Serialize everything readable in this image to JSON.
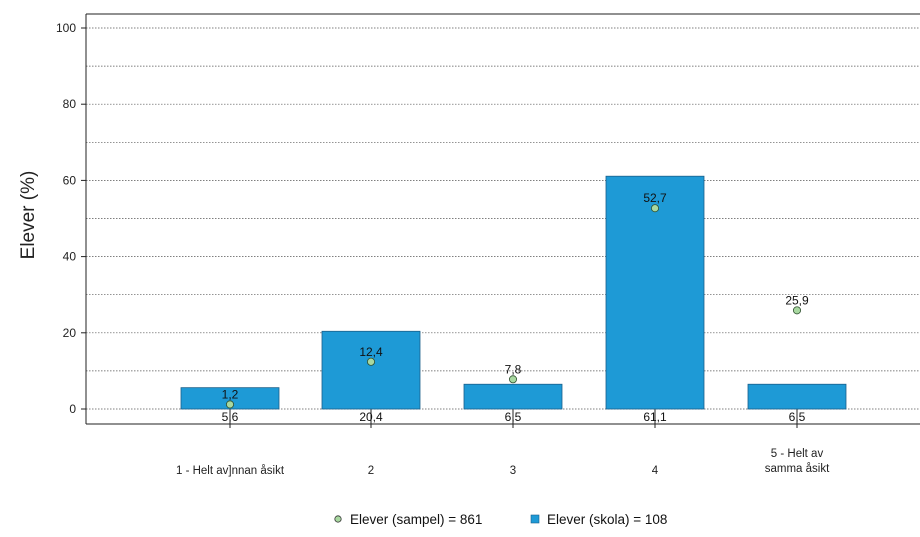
{
  "chart_data": {
    "type": "bar",
    "title": "",
    "xlabel": "",
    "ylabel": "Elever (%)",
    "ylim": [
      0,
      100
    ],
    "yticks": [
      0,
      20,
      40,
      60,
      80,
      100
    ],
    "grid": true,
    "legend_position": "bottom",
    "categories": [
      [
        "1 - Helt av]nnan åsikt"
      ],
      [
        "2"
      ],
      [
        "3"
      ],
      [
        "4"
      ],
      [
        "5 - Helt av",
        "samma åsikt"
      ]
    ],
    "series": [
      {
        "name": "Elever (skola) = 108",
        "kind": "bar",
        "color": "#1e9ad6",
        "values": [
          5.6,
          20.4,
          6.5,
          61.1,
          6.5
        ],
        "labels": [
          "5,6",
          "20,4",
          "6,5",
          "61,1",
          "6,5"
        ]
      },
      {
        "name": "Elever (sampel) = 861",
        "kind": "point",
        "color": "#a8d8a0",
        "values": [
          1.2,
          12.4,
          7.8,
          52.7,
          25.9
        ],
        "labels": [
          "1,2",
          "12,4",
          "7,8",
          "52,7",
          "25,9"
        ]
      }
    ]
  }
}
